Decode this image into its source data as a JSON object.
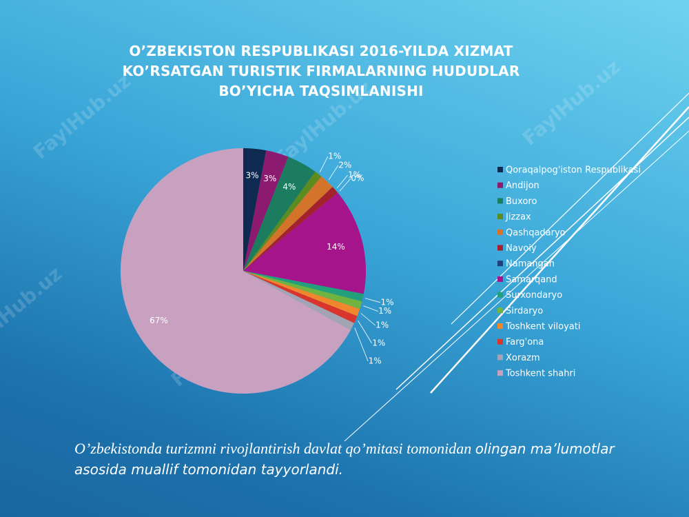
{
  "chart_data": {
    "type": "pie",
    "title": "O’ZBEKISTON RESPUBLIKASI 2016-YILDA XIZMAT KO’RSATGAN TURISTIK FIRMALARNING HUDUDLAR BO’YICHA TAQSIMLANISHI",
    "categories": [
      "Qoraqalpog'iston Respublikasi",
      "Andijon",
      "Buxoro",
      "Jizzax",
      "Qashqadaryo",
      "Navoiy",
      "Namangan",
      "Samarqand",
      "Surxondaryo",
      "Sirdaryo",
      "Toshkent viloyati",
      "Farg'ona",
      "Xorazm",
      "Toshkent shahri"
    ],
    "values": [
      3,
      3,
      4,
      1,
      2,
      1,
      0,
      14,
      1,
      1,
      1,
      1,
      1,
      67
    ],
    "value_labels": [
      "3%",
      "3%",
      "4%",
      "1%",
      "2%",
      "1%",
      "0%",
      "14%",
      "1%",
      "1%",
      "1%",
      "1%",
      "1%",
      "67%"
    ],
    "colors": [
      "#0f2a50",
      "#8c1a6e",
      "#1b7c60",
      "#5c8c20",
      "#d4742b",
      "#a3222b",
      "#203f7c",
      "#a6148c",
      "#22a07c",
      "#6fb440",
      "#f0862e",
      "#d9352c",
      "#a2a3b3",
      "#c9a1c0"
    ],
    "legend": "right"
  },
  "note": [
    "O’zbekistonda turizmni rivojlantirish davlat qo’mitasi tomonidan ",
    "olingan ma’lumotlar asosida muallif tomonidan tayyorlandi."
  ],
  "watermark": "FaylHub.uz"
}
